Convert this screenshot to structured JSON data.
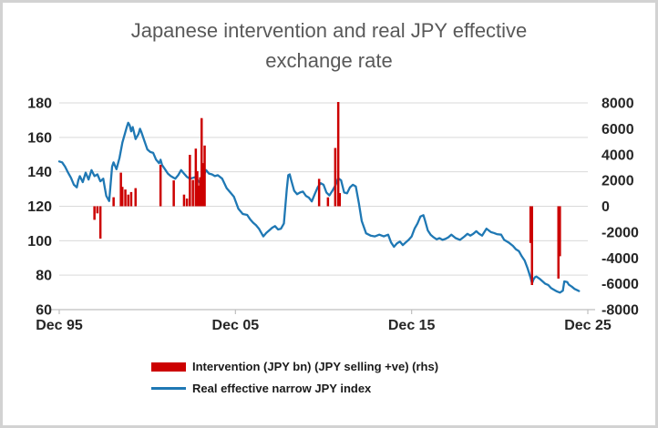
{
  "title_lines": [
    "Japanese intervention and real JPY effective",
    "exchange rate"
  ],
  "colors": {
    "line": "#1f78b4",
    "bar": "#cc0000",
    "title": "#595959",
    "axis_text": "#262626",
    "gridline": "#d9d9d9",
    "axis_line": "#bfbfbf"
  },
  "legend": [
    {
      "label": "Intervention (JPY bn) (JPY selling +ve) (rhs)",
      "marker": "bar"
    },
    {
      "label": "Real effective narrow JPY index",
      "marker": "line"
    }
  ],
  "chart_data": {
    "type": "combo",
    "title": "Japanese intervention and real JPY effective exchange rate",
    "x_axis": {
      "range": [
        "1995-12",
        "2025-12"
      ],
      "ticks": [
        {
          "label": "Dec 95",
          "date": "1995-12"
        },
        {
          "label": "Dec 05",
          "date": "2005-12"
        },
        {
          "label": "Dec 15",
          "date": "2015-12"
        },
        {
          "label": "Dec 25",
          "date": "2025-12"
        }
      ]
    },
    "left_axis": {
      "min": 60,
      "max": 180,
      "ticks": [
        180,
        160,
        140,
        120,
        100,
        80,
        60
      ]
    },
    "right_axis": {
      "min": -8000,
      "max": 8000,
      "ticks": [
        8000,
        6000,
        4000,
        2000,
        0,
        -2000,
        -4000,
        -6000,
        -8000
      ]
    },
    "grid": true,
    "series": [
      {
        "name": "Intervention (JPY bn) (JPY selling +ve) (rhs)",
        "type": "bar",
        "axis": "right",
        "points": [
          [
            "1997-12",
            -1050
          ],
          [
            "1998-02",
            -550
          ],
          [
            "1998-04",
            -2500
          ],
          [
            "1999-01",
            700
          ],
          [
            "1999-06",
            2600
          ],
          [
            "1999-07",
            1500
          ],
          [
            "1999-09",
            1300
          ],
          [
            "1999-11",
            900
          ],
          [
            "2000-01",
            1100
          ],
          [
            "2000-04",
            1400
          ],
          [
            "2001-09",
            3210
          ],
          [
            "2002-06",
            2000
          ],
          [
            "2003-01",
            900
          ],
          [
            "2003-03",
            600
          ],
          [
            "2003-05",
            3980
          ],
          [
            "2003-07",
            2030
          ],
          [
            "2003-09",
            4460
          ],
          [
            "2003-10",
            2720
          ],
          [
            "2003-11",
            1600
          ],
          [
            "2003-12",
            2250
          ],
          [
            "2004-01",
            6820
          ],
          [
            "2004-02",
            3340
          ],
          [
            "2004-03",
            4700
          ],
          [
            "2010-09",
            2120
          ],
          [
            "2011-03",
            690
          ],
          [
            "2011-08",
            4510
          ],
          [
            "2011-10",
            8070
          ],
          [
            "2011-11",
            1020
          ],
          [
            "2022-09",
            -2840
          ],
          [
            "2022-10",
            -6100
          ],
          [
            "2024-04",
            -5600
          ],
          [
            "2024-05",
            -3870
          ]
        ]
      },
      {
        "name": "Real effective narrow JPY index",
        "type": "line",
        "axis": "left",
        "points": [
          [
            "1995-12",
            146
          ],
          [
            "1996-02",
            145.5
          ],
          [
            "1996-04",
            143
          ],
          [
            "1996-06",
            139.5
          ],
          [
            "1996-08",
            136.5
          ],
          [
            "1996-10",
            132.5
          ],
          [
            "1996-12",
            131
          ],
          [
            "1997-01",
            135
          ],
          [
            "1997-02",
            137.5
          ],
          [
            "1997-04",
            134
          ],
          [
            "1997-06",
            139.5
          ],
          [
            "1997-08",
            135.5
          ],
          [
            "1997-10",
            141
          ],
          [
            "1997-12",
            137.5
          ],
          [
            "1998-02",
            138.5
          ],
          [
            "1998-04",
            134.5
          ],
          [
            "1998-06",
            136
          ],
          [
            "1998-07",
            131
          ],
          [
            "1998-08",
            126
          ],
          [
            "1998-10",
            123
          ],
          [
            "1998-11",
            133
          ],
          [
            "1998-12",
            143
          ],
          [
            "1999-01",
            145.5
          ],
          [
            "1999-03",
            141.5
          ],
          [
            "1999-05",
            148
          ],
          [
            "1999-07",
            157
          ],
          [
            "1999-09",
            163
          ],
          [
            "1999-10",
            166
          ],
          [
            "1999-11",
            168.5
          ],
          [
            "1999-12",
            167
          ],
          [
            "2000-01",
            163.5
          ],
          [
            "2000-02",
            166
          ],
          [
            "2000-04",
            159
          ],
          [
            "2000-06",
            162
          ],
          [
            "2000-07",
            165
          ],
          [
            "2000-08",
            163
          ],
          [
            "2000-10",
            158
          ],
          [
            "2000-12",
            153
          ],
          [
            "2001-02",
            151.5
          ],
          [
            "2001-04",
            151
          ],
          [
            "2001-06",
            147
          ],
          [
            "2001-08",
            145
          ],
          [
            "2001-09",
            147
          ],
          [
            "2001-10",
            144
          ],
          [
            "2001-12",
            141.5
          ],
          [
            "2002-02",
            139
          ],
          [
            "2002-04",
            137.5
          ],
          [
            "2002-07",
            136
          ],
          [
            "2002-09",
            138
          ],
          [
            "2002-11",
            141
          ],
          [
            "2003-01",
            139
          ],
          [
            "2003-03",
            137
          ],
          [
            "2003-05",
            136
          ],
          [
            "2003-07",
            136.5
          ],
          [
            "2003-09",
            137
          ],
          [
            "2003-10",
            135.5
          ],
          [
            "2003-12",
            133.5
          ],
          [
            "2004-02",
            137
          ],
          [
            "2004-04",
            141
          ],
          [
            "2004-06",
            139
          ],
          [
            "2004-08",
            138.5
          ],
          [
            "2004-10",
            137.5
          ],
          [
            "2004-12",
            138
          ],
          [
            "2005-03",
            136
          ],
          [
            "2005-06",
            130.5
          ],
          [
            "2005-09",
            127.5
          ],
          [
            "2005-11",
            125.5
          ],
          [
            "2006-02",
            118.5
          ],
          [
            "2006-05",
            115.5
          ],
          [
            "2006-08",
            115
          ],
          [
            "2006-10",
            112.5
          ],
          [
            "2006-12",
            110.5
          ],
          [
            "2007-02",
            109
          ],
          [
            "2007-04",
            107
          ],
          [
            "2007-07",
            102.5
          ],
          [
            "2007-09",
            104.5
          ],
          [
            "2007-11",
            106
          ],
          [
            "2008-01",
            107.5
          ],
          [
            "2008-03",
            108.5
          ],
          [
            "2008-05",
            106.5
          ],
          [
            "2008-07",
            107
          ],
          [
            "2008-09",
            110
          ],
          [
            "2008-11",
            130
          ],
          [
            "2008-12",
            138
          ],
          [
            "2009-01",
            138.5
          ],
          [
            "2009-02",
            135
          ],
          [
            "2009-04",
            129
          ],
          [
            "2009-06",
            127
          ],
          [
            "2009-08",
            128
          ],
          [
            "2009-10",
            128.5
          ],
          [
            "2009-12",
            126
          ],
          [
            "2010-02",
            125
          ],
          [
            "2010-04",
            122.8
          ],
          [
            "2010-06",
            127
          ],
          [
            "2010-08",
            131
          ],
          [
            "2010-10",
            133.4
          ],
          [
            "2010-12",
            132.5
          ],
          [
            "2011-02",
            128
          ],
          [
            "2011-04",
            126.3
          ],
          [
            "2011-06",
            129
          ],
          [
            "2011-08",
            132
          ],
          [
            "2011-10",
            136.3
          ],
          [
            "2011-12",
            135
          ],
          [
            "2012-02",
            128
          ],
          [
            "2012-04",
            127.5
          ],
          [
            "2012-06",
            131
          ],
          [
            "2012-08",
            132.5
          ],
          [
            "2012-10",
            131.5
          ],
          [
            "2012-12",
            122
          ],
          [
            "2013-02",
            111.5
          ],
          [
            "2013-05",
            104.3
          ],
          [
            "2013-08",
            103
          ],
          [
            "2013-11",
            102.5
          ],
          [
            "2014-02",
            103.5
          ],
          [
            "2014-05",
            102.5
          ],
          [
            "2014-08",
            103.5
          ],
          [
            "2014-10",
            99
          ],
          [
            "2014-12",
            96.5
          ],
          [
            "2015-02",
            98.5
          ],
          [
            "2015-04",
            99.5
          ],
          [
            "2015-06",
            97.5
          ],
          [
            "2015-08",
            99
          ],
          [
            "2015-10",
            100.5
          ],
          [
            "2015-12",
            102.5
          ],
          [
            "2016-02",
            107
          ],
          [
            "2016-04",
            110
          ],
          [
            "2016-06",
            114
          ],
          [
            "2016-08",
            114.8
          ],
          [
            "2016-09",
            112
          ],
          [
            "2016-11",
            106
          ],
          [
            "2017-01",
            103.4
          ],
          [
            "2017-03",
            102
          ],
          [
            "2017-05",
            100.8
          ],
          [
            "2017-07",
            101.5
          ],
          [
            "2017-09",
            100.5
          ],
          [
            "2017-11",
            101
          ],
          [
            "2018-01",
            102
          ],
          [
            "2018-03",
            103.5
          ],
          [
            "2018-06",
            101.5
          ],
          [
            "2018-09",
            100.5
          ],
          [
            "2018-12",
            102.5
          ],
          [
            "2019-02",
            104
          ],
          [
            "2019-04",
            103
          ],
          [
            "2019-06",
            104
          ],
          [
            "2019-08",
            105.5
          ],
          [
            "2019-10",
            104
          ],
          [
            "2019-12",
            103
          ],
          [
            "2020-03",
            107
          ],
          [
            "2020-06",
            105
          ],
          [
            "2020-08",
            104.5
          ],
          [
            "2020-10",
            103.8
          ],
          [
            "2021-01",
            103.5
          ],
          [
            "2021-03",
            100.5
          ],
          [
            "2021-06",
            99
          ],
          [
            "2021-09",
            97
          ],
          [
            "2021-11",
            95
          ],
          [
            "2022-01",
            94
          ],
          [
            "2022-03",
            91
          ],
          [
            "2022-05",
            88.5
          ],
          [
            "2022-07",
            84
          ],
          [
            "2022-09",
            78.5
          ],
          [
            "2022-10",
            75.2
          ],
          [
            "2022-11",
            77.5
          ],
          [
            "2022-12",
            78.8
          ],
          [
            "2023-01",
            79.2
          ],
          [
            "2023-03",
            78
          ],
          [
            "2023-05",
            76.5
          ],
          [
            "2023-07",
            75
          ],
          [
            "2023-09",
            74.3
          ],
          [
            "2023-11",
            72.5
          ],
          [
            "2024-01",
            71.5
          ],
          [
            "2024-03",
            70.5
          ],
          [
            "2024-05",
            69.9
          ],
          [
            "2024-07",
            71
          ],
          [
            "2024-08",
            76.4
          ],
          [
            "2024-10",
            76
          ],
          [
            "2024-11",
            74.5
          ],
          [
            "2025-01",
            73.4
          ],
          [
            "2025-03",
            72
          ],
          [
            "2025-05",
            71.2
          ],
          [
            "2025-06",
            70.8
          ]
        ]
      }
    ]
  }
}
